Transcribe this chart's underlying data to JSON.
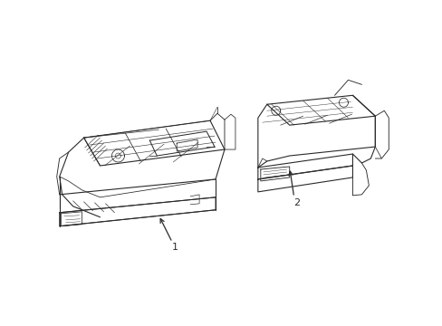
{
  "background_color": "#ffffff",
  "line_color": "#2a2a2a",
  "lw": 0.8,
  "figsize": [
    4.89,
    3.6
  ],
  "dpi": 100,
  "label1": "1",
  "label2": "2"
}
